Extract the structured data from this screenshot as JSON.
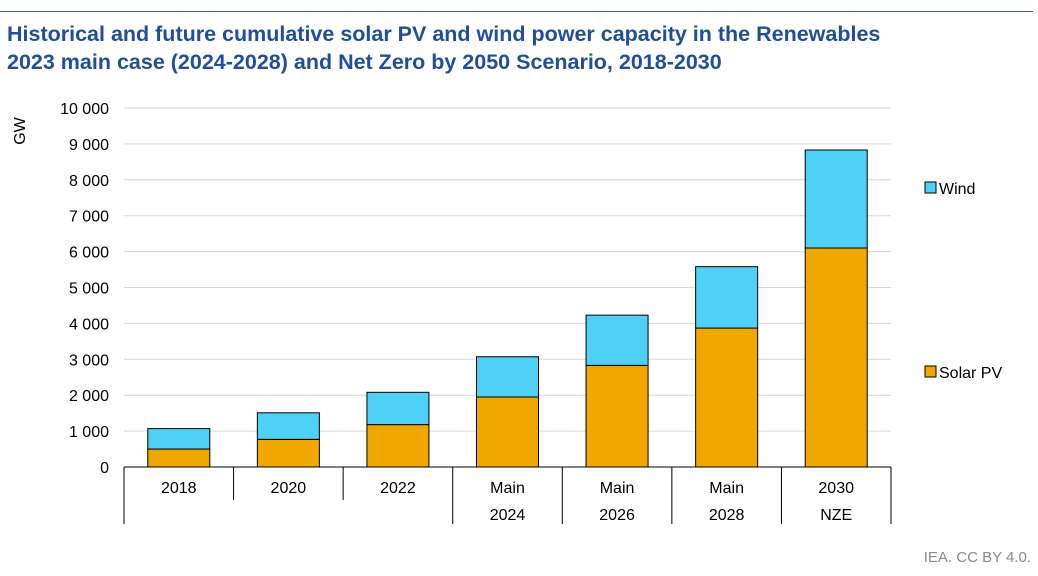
{
  "title_line1": "Historical and future cumulative solar PV and wind power capacity in the Renewables",
  "title_line2": "2023 main case (2024-2028) and Net Zero by 2050 Scenario, 2018-2030",
  "credit": "IEA. CC BY 4.0.",
  "colors": {
    "title": "#1f4e9c",
    "rule": "#3b5aa5",
    "solar": "#f0a800",
    "wind": "#4fd0f7",
    "grid": "#d9d9d9",
    "axis": "#000000"
  },
  "chart_data": {
    "type": "bar",
    "stacked": true,
    "ylabel": "GW",
    "ylim": [
      0,
      10000
    ],
    "yticks": [
      0,
      1000,
      2000,
      3000,
      4000,
      5000,
      6000,
      7000,
      8000,
      9000,
      10000
    ],
    "ytick_labels": [
      "0",
      "1 000",
      "2 000",
      "3 000",
      "4 000",
      "5 000",
      "6 000",
      "7 000",
      "8 000",
      "9 000",
      "10 000"
    ],
    "grid": true,
    "legend_position": "right",
    "categories": [
      [
        "2018"
      ],
      [
        "2020"
      ],
      [
        "2022"
      ],
      [
        "Main",
        "2024"
      ],
      [
        "Main",
        "2026"
      ],
      [
        "Main",
        "2028"
      ],
      [
        "2030",
        "NZE"
      ]
    ],
    "series": [
      {
        "name": "Solar PV",
        "color": "#f0a800",
        "values": [
          500,
          770,
          1180,
          1950,
          2830,
          3870,
          6100
        ]
      },
      {
        "name": "Wind",
        "color": "#4fd0f7",
        "values": [
          570,
          740,
          900,
          1120,
          1400,
          1710,
          2730
        ]
      }
    ],
    "legend_order": [
      "Wind",
      "Solar PV"
    ]
  }
}
